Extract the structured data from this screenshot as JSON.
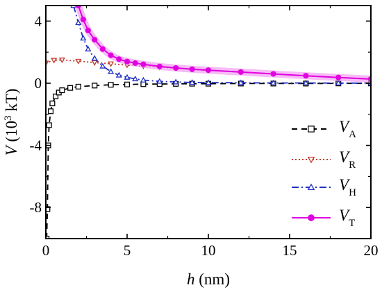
{
  "chart_data": {
    "type": "line",
    "title": "",
    "xlabel": {
      "var": "h",
      "unit": " (nm)"
    },
    "ylabel": {
      "var": "V",
      "unit_pre": " (10",
      "unit_exp": "3",
      "unit_post": " kT)"
    },
    "xlim": [
      0,
      20
    ],
    "ylim": [
      -10.0,
      5.0
    ],
    "xticks": [
      0,
      5,
      10,
      15,
      20
    ],
    "xtick_labels": [
      "0",
      "5",
      "10",
      "15",
      "20"
    ],
    "yticks": [
      -8,
      -4,
      0,
      4
    ],
    "ytick_labels": [
      "-8",
      "-4",
      "0",
      "4"
    ],
    "grid": false,
    "legend_position": "lower-right",
    "series": [
      {
        "name": "V",
        "sub": "A",
        "color": "#000000",
        "dash": "8,6",
        "marker": "square",
        "x": [
          0.05,
          0.1,
          0.15,
          0.2,
          0.3,
          0.4,
          0.6,
          0.8,
          1.0,
          1.5,
          2.0,
          3.0,
          4.0,
          5.0,
          6.0,
          7.0,
          8.0,
          9.0,
          10.0,
          12.0,
          14.0,
          16.0,
          18.0,
          20.0
        ],
        "y": [
          -10.0,
          -8.1,
          -4.0,
          -2.7,
          -1.8,
          -1.3,
          -0.85,
          -0.6,
          -0.45,
          -0.3,
          -0.22,
          -0.15,
          -0.1,
          -0.08,
          -0.06,
          -0.05,
          -0.04,
          -0.03,
          -0.03,
          -0.02,
          -0.02,
          -0.02,
          -0.01,
          -0.01
        ]
      },
      {
        "name": "V",
        "sub": "R",
        "color": "#c0392b",
        "dash": "2,3",
        "marker": "triangle-down",
        "x": [
          0,
          0.5,
          1.0,
          2.0,
          3.0,
          4.0,
          5.0,
          6.0,
          7.0,
          8.0,
          9.0,
          10.0,
          12.0,
          14.0,
          16.0,
          18.0,
          20.0
        ],
        "y": [
          1.3,
          1.48,
          1.5,
          1.42,
          1.33,
          1.25,
          1.17,
          1.1,
          1.03,
          0.96,
          0.9,
          0.84,
          0.72,
          0.6,
          0.48,
          0.37,
          0.27
        ]
      },
      {
        "name": "V",
        "sub": "H",
        "color": "#1f2fc4",
        "dash": "10,4,2,4",
        "marker": "triangle-up",
        "x": [
          1.7,
          2.0,
          2.3,
          2.6,
          3.0,
          3.5,
          4.0,
          4.5,
          5.0,
          5.5,
          6.0,
          7.0,
          8.0,
          9.0,
          10.0,
          12.0,
          14.0,
          16.0,
          18.0,
          20.0
        ],
        "y": [
          5.0,
          3.9,
          2.9,
          2.2,
          1.6,
          1.1,
          0.75,
          0.52,
          0.38,
          0.28,
          0.2,
          0.12,
          0.08,
          0.05,
          0.04,
          0.03,
          0.02,
          0.02,
          0.01,
          0.01
        ]
      },
      {
        "name": "V",
        "sub": "T",
        "color": "#e000e0",
        "dash": "",
        "marker": "circle",
        "x": [
          2.0,
          2.3,
          2.6,
          3.0,
          3.5,
          4.0,
          4.5,
          5.0,
          5.5,
          6.0,
          7.0,
          8.0,
          9.0,
          10.0,
          12.0,
          14.0,
          16.0,
          18.0,
          20.0
        ],
        "y": [
          5.0,
          4.1,
          3.4,
          2.8,
          2.2,
          1.8,
          1.55,
          1.4,
          1.3,
          1.22,
          1.08,
          0.98,
          0.9,
          0.84,
          0.72,
          0.6,
          0.48,
          0.37,
          0.27
        ]
      }
    ]
  },
  "colors": {
    "axis": "#000000",
    "series_A": "#000000",
    "series_R": "#c0392b",
    "series_H": "#1f2fc4",
    "series_T": "#e000e0",
    "highlight_T": "#f4a4f4"
  }
}
